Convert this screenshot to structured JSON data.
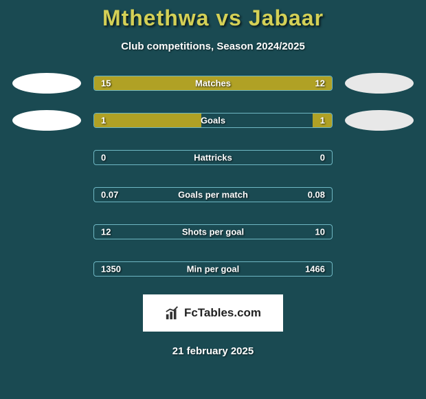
{
  "title": "Mthethwa vs Jabaar",
  "subtitle": "Club competitions, Season 2024/2025",
  "date": "21 february 2025",
  "logo_text": "FcTables.com",
  "colors": {
    "background": "#1a4a52",
    "title_color": "#d4d056",
    "text_color": "#ffffff",
    "bar_border": "#6fb8c4",
    "bar_fill": "#b0a125",
    "oval_left": "#ffffff",
    "oval_right": "#e8e8e8",
    "logo_bg": "#ffffff"
  },
  "stats": [
    {
      "label": "Matches",
      "left_val": "15",
      "right_val": "12",
      "left_pct": 85,
      "right_pct": 15,
      "show_ovals": true
    },
    {
      "label": "Goals",
      "left_val": "1",
      "right_val": "1",
      "left_pct": 45,
      "right_pct": 8,
      "show_ovals": true
    },
    {
      "label": "Hattricks",
      "left_val": "0",
      "right_val": "0",
      "left_pct": 0,
      "right_pct": 0,
      "show_ovals": false
    },
    {
      "label": "Goals per match",
      "left_val": "0.07",
      "right_val": "0.08",
      "left_pct": 0,
      "right_pct": 0,
      "show_ovals": false
    },
    {
      "label": "Shots per goal",
      "left_val": "12",
      "right_val": "10",
      "left_pct": 0,
      "right_pct": 0,
      "show_ovals": false
    },
    {
      "label": "Min per goal",
      "left_val": "1350",
      "right_val": "1466",
      "left_pct": 0,
      "right_pct": 0,
      "show_ovals": false
    }
  ]
}
